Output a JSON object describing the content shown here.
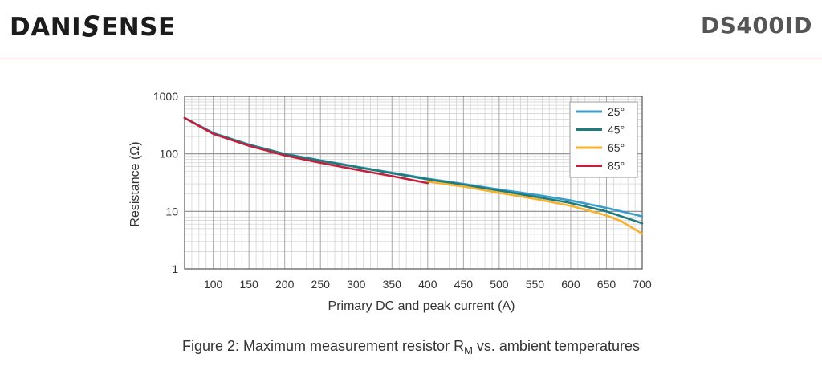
{
  "header": {
    "brand_left": "DANI",
    "brand_slash": "S",
    "brand_right": "ENSE",
    "product": "DS400ID"
  },
  "colors": {
    "rule": "#d9363e",
    "series_25": "#3a9cc9",
    "series_45": "#1e7c7c",
    "series_65": "#f6b12f",
    "series_85": "#c2213e"
  },
  "caption": {
    "prefix": "Figure 2: Maximum measurement resistor R",
    "subscript": "M",
    "suffix": " vs. ambient temperatures"
  },
  "chart_data": {
    "type": "line",
    "title": "",
    "xlabel": "Primary DC and peak current (A)",
    "ylabel": "Resistance (Ω)",
    "xlim": [
      60,
      700
    ],
    "ylim": [
      1,
      1000
    ],
    "yscale": "log",
    "grid": true,
    "legend_position": "top-right",
    "x_ticks": [
      100,
      150,
      200,
      250,
      300,
      350,
      400,
      450,
      500,
      550,
      600,
      650,
      700
    ],
    "y_ticks": [
      1,
      10,
      100,
      1000
    ],
    "series": [
      {
        "name": "25°",
        "color": "#3a9cc9",
        "points": [
          [
            60,
            420
          ],
          [
            100,
            230
          ],
          [
            150,
            145
          ],
          [
            200,
            100
          ],
          [
            250,
            77
          ],
          [
            300,
            60
          ],
          [
            350,
            47
          ],
          [
            400,
            37
          ],
          [
            450,
            30
          ],
          [
            500,
            24
          ],
          [
            550,
            19.5
          ],
          [
            600,
            15.5
          ],
          [
            650,
            11.5
          ],
          [
            700,
            8.2
          ]
        ]
      },
      {
        "name": "45°",
        "color": "#1e7c7c",
        "points": [
          [
            60,
            420
          ],
          [
            100,
            228
          ],
          [
            150,
            143
          ],
          [
            200,
            99
          ],
          [
            250,
            76
          ],
          [
            300,
            59
          ],
          [
            350,
            46
          ],
          [
            400,
            36
          ],
          [
            450,
            29
          ],
          [
            500,
            23
          ],
          [
            550,
            18
          ],
          [
            600,
            14
          ],
          [
            650,
            10
          ],
          [
            700,
            6.2
          ]
        ]
      },
      {
        "name": "65°",
        "color": "#f6b12f",
        "points": [
          [
            400,
            33
          ],
          [
            450,
            27
          ],
          [
            500,
            21
          ],
          [
            550,
            16.5
          ],
          [
            600,
            12.5
          ],
          [
            650,
            8.5
          ],
          [
            670,
            6.8
          ],
          [
            700,
            4.1
          ]
        ]
      },
      {
        "name": "85°",
        "color": "#c2213e",
        "points": [
          [
            60,
            420
          ],
          [
            100,
            222
          ],
          [
            150,
            138
          ],
          [
            200,
            94
          ],
          [
            250,
            70
          ],
          [
            300,
            53
          ],
          [
            350,
            41
          ],
          [
            400,
            31
          ]
        ]
      }
    ]
  }
}
